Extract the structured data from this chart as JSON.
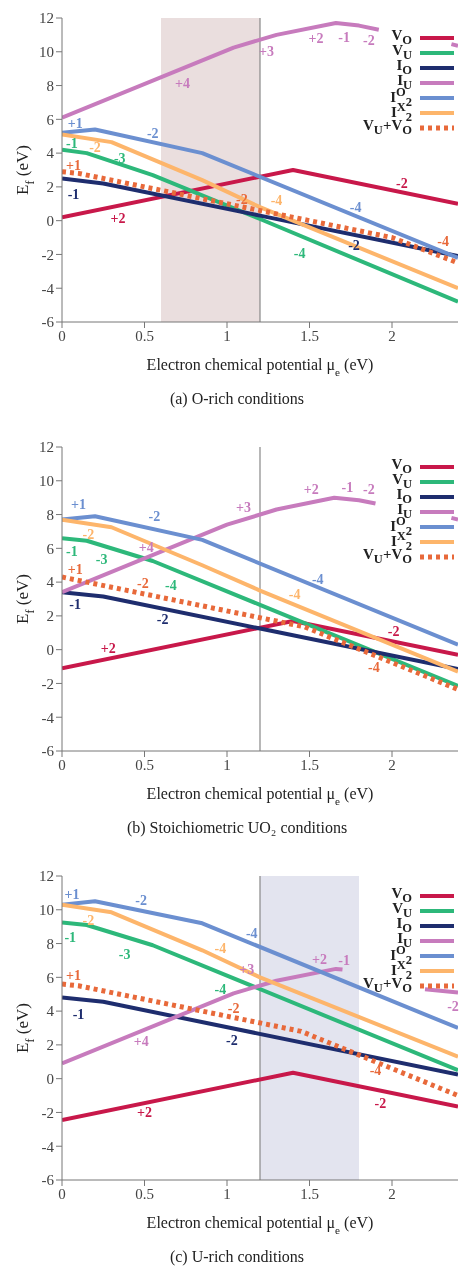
{
  "chart_data": [
    {
      "type": "line",
      "title": "(a) O-rich conditions",
      "xlabel": "Electron chemical potential μ$_{e}$ (eV)",
      "ylabel": "E$_{f}$ (eV)",
      "xlim": [
        0,
        2.4
      ],
      "ylim": [
        -6,
        12
      ],
      "xticks": [
        0,
        0.5,
        1,
        1.5,
        2
      ],
      "yticks": [
        -6,
        -4,
        -2,
        0,
        2,
        4,
        6,
        8,
        10,
        12
      ],
      "grid": false,
      "legend": "top right",
      "marker": "none",
      "series": [
        {
          "name": "V$_{O}$",
          "color": "#c8184a",
          "line_style": "solid",
          "x": [
            0,
            1.4,
            2.4
          ],
          "values": [
            0.2,
            3.0,
            1.0
          ]
        },
        {
          "name": "V$_{U}$",
          "color": "#2db87a",
          "line_style": "solid",
          "x": [
            0,
            0.15,
            0.55,
            1.2,
            2.4
          ],
          "values": [
            4.2,
            4.0,
            2.7,
            0.1,
            -4.8
          ]
        },
        {
          "name": "I$_{O}$",
          "color": "#1e2d6e",
          "line_style": "solid",
          "x": [
            0,
            0.25,
            1.2,
            2.4
          ],
          "values": [
            2.5,
            2.2,
            0.3,
            -2.1
          ]
        },
        {
          "name": "I$_{U}$",
          "color": "#c77bbd",
          "line_style": "solid",
          "x": [
            0,
            1.04,
            1.3,
            1.66,
            1.8,
            1.92,
            1.95,
            2.36,
            2.4
          ],
          "values": [
            6.1,
            10.25,
            11.0,
            11.7,
            11.55,
            11.3,
            null,
            10.45,
            10.35
          ]
        },
        {
          "name": "I$^{O}$$_{2}$",
          "color": "#6b8fd0",
          "line_style": "solid",
          "x": [
            0,
            0.2,
            0.85,
            2.4
          ],
          "values": [
            5.2,
            5.4,
            4.0,
            -2.2
          ]
        },
        {
          "name": "I$^{X}$$_{2}$",
          "color": "#fdb56b",
          "line_style": "solid",
          "x": [
            0,
            0.3,
            0.85,
            1.2,
            2.4
          ],
          "values": [
            5.1,
            4.65,
            2.4,
            0.8,
            -4.0
          ]
        },
        {
          "name": "V$_{U}$+V$_{O}$",
          "color": "#e8693a",
          "line_style": "dotted",
          "x": [
            0,
            0.1,
            2.0,
            2.4
          ],
          "values": [
            2.9,
            2.8,
            -1.0,
            -2.5
          ]
        }
      ],
      "bands": [
        {
          "axis": "x",
          "from": 0.6,
          "to": 1.2,
          "color": "#eadede"
        }
      ],
      "ref_lines": [
        {
          "axis": "x",
          "value": 1.2,
          "color": "#888888"
        }
      ],
      "annotations": [
        "+4",
        "+3",
        "+2",
        "-1",
        "-2",
        "+1",
        "-2",
        "-4",
        "-1",
        "-3",
        "-4",
        "-2",
        "-4",
        "-1",
        "-2",
        "+2",
        "-2",
        "+1",
        "-2",
        "-4"
      ]
    },
    {
      "type": "line",
      "title": "(b) Stoichiometric UO₂ conditions",
      "xlabel": "Electron chemical potential μ$_{e}$ (eV)",
      "ylabel": "E$_{f}$ (eV)",
      "xlim": [
        0,
        2.4
      ],
      "ylim": [
        -6,
        12
      ],
      "xticks": [
        0,
        0.5,
        1,
        1.5,
        2
      ],
      "yticks": [
        -6,
        -4,
        -2,
        0,
        2,
        4,
        6,
        8,
        10,
        12
      ],
      "grid": false,
      "legend": "top right",
      "marker": "none",
      "series": [
        {
          "name": "V$_{O}$",
          "color": "#c8184a",
          "line_style": "solid",
          "x": [
            0,
            1.4,
            2.4
          ],
          "values": [
            -1.1,
            1.7,
            -0.3
          ]
        },
        {
          "name": "V$_{U}$",
          "color": "#2db87a",
          "line_style": "solid",
          "x": [
            0,
            0.15,
            0.55,
            1.2,
            2.4
          ],
          "values": [
            6.6,
            6.45,
            5.25,
            2.65,
            -2.15
          ]
        },
        {
          "name": "I$_{O}$",
          "color": "#1e2d6e",
          "line_style": "solid",
          "x": [
            0,
            0.25,
            1.2,
            2.4
          ],
          "values": [
            3.4,
            3.15,
            1.25,
            -1.15
          ]
        },
        {
          "name": "I$_{U}$",
          "color": "#c77bbd",
          "line_style": "solid",
          "x": [
            0,
            1.0,
            1.3,
            1.65,
            1.8,
            1.9,
            1.95,
            2.36,
            2.4
          ],
          "values": [
            3.4,
            7.4,
            8.3,
            9.0,
            8.85,
            8.65,
            null,
            7.8,
            7.7
          ]
        },
        {
          "name": "I$^{O}$$_{2}$",
          "color": "#6b8fd0",
          "line_style": "solid",
          "x": [
            0,
            0.2,
            0.85,
            2.4
          ],
          "values": [
            7.7,
            7.9,
            6.5,
            0.3
          ]
        },
        {
          "name": "I$^{X}$$_{2}$",
          "color": "#fdb56b",
          "line_style": "solid",
          "x": [
            0,
            0.3,
            0.85,
            1.2,
            2.4
          ],
          "values": [
            7.7,
            7.25,
            5.0,
            3.5,
            -1.3
          ]
        },
        {
          "name": "V$_{U}$+V$_{O}$",
          "color": "#e8693a",
          "line_style": "dotted",
          "x": [
            0,
            0.1,
            1.47,
            2.4
          ],
          "values": [
            4.3,
            4.1,
            1.35,
            -2.35
          ]
        }
      ],
      "ref_lines": [
        {
          "axis": "x",
          "value": 1.2,
          "color": "#888888"
        }
      ],
      "annotations": [
        "+1",
        "-2",
        "-4",
        "-2",
        "-4",
        "-1",
        "-3",
        "-4",
        "+4",
        "+3",
        "+2",
        "-1",
        "-2",
        "-1",
        "-2",
        "+2",
        "-2",
        "+1",
        "-2",
        "-4"
      ]
    },
    {
      "type": "line",
      "title": "(c) U-rich conditions",
      "xlabel": "Electron chemical potential μ$_{e}$ (eV)",
      "ylabel": "E$_{f}$ (eV)",
      "xlim": [
        0,
        2.4
      ],
      "ylim": [
        -6,
        12
      ],
      "xticks": [
        0,
        0.5,
        1,
        1.5,
        2
      ],
      "yticks": [
        -6,
        -4,
        -2,
        0,
        2,
        4,
        6,
        8,
        10,
        12
      ],
      "grid": false,
      "legend": "top right",
      "marker": "none",
      "series": [
        {
          "name": "V$_{O}$",
          "color": "#c8184a",
          "line_style": "solid",
          "x": [
            0,
            1.4,
            2.4
          ],
          "values": [
            -2.45,
            0.35,
            -1.65
          ]
        },
        {
          "name": "V$_{U}$",
          "color": "#2db87a",
          "line_style": "solid",
          "x": [
            0,
            0.15,
            0.55,
            2.4
          ],
          "values": [
            9.25,
            9.1,
            7.9,
            0.5
          ]
        },
        {
          "name": "I$_{O}$",
          "color": "#1e2d6e",
          "line_style": "solid",
          "x": [
            0,
            0.25,
            2.4
          ],
          "values": [
            4.8,
            4.55,
            0.25
          ]
        },
        {
          "name": "I$_{U}$",
          "color": "#c77bbd",
          "line_style": "solid",
          "x": [
            0,
            1.04,
            1.3,
            1.66,
            1.7,
            1.8,
            2.2,
            2.4
          ],
          "values": [
            0.9,
            5.05,
            5.8,
            6.5,
            6.46,
            null,
            5.3,
            5.1
          ]
        },
        {
          "name": "I$^{O}$$_{2}$",
          "color": "#6b8fd0",
          "line_style": "solid",
          "x": [
            0,
            0.2,
            0.85,
            2.4
          ],
          "values": [
            10.3,
            10.5,
            9.2,
            3.0
          ]
        },
        {
          "name": "I$^{X}$$_{2}$",
          "color": "#fdb56b",
          "line_style": "solid",
          "x": [
            0,
            0.3,
            0.85,
            1.2,
            2.4
          ],
          "values": [
            10.3,
            9.85,
            7.6,
            6.0,
            1.3
          ]
        },
        {
          "name": "V$_{U}$+V$_{O}$",
          "color": "#e8693a",
          "line_style": "dotted",
          "x": [
            0,
            0.1,
            1.45,
            2.4
          ],
          "values": [
            5.6,
            5.5,
            2.8,
            -1.0
          ]
        }
      ],
      "bands": [
        {
          "axis": "x",
          "from": 1.2,
          "to": 1.8,
          "color": "#e3e4ef"
        }
      ],
      "ref_lines": [
        {
          "axis": "x",
          "value": 1.2,
          "color": "#888888"
        }
      ],
      "annotations": [
        "+1",
        "-2",
        "-4",
        "-2",
        "-4",
        "-1",
        "-3",
        "-4",
        "+4",
        "+3",
        "+2",
        "-1",
        "-2",
        "-1",
        "-2",
        "+2",
        "-2",
        "+1",
        "-2",
        "-4"
      ]
    }
  ]
}
